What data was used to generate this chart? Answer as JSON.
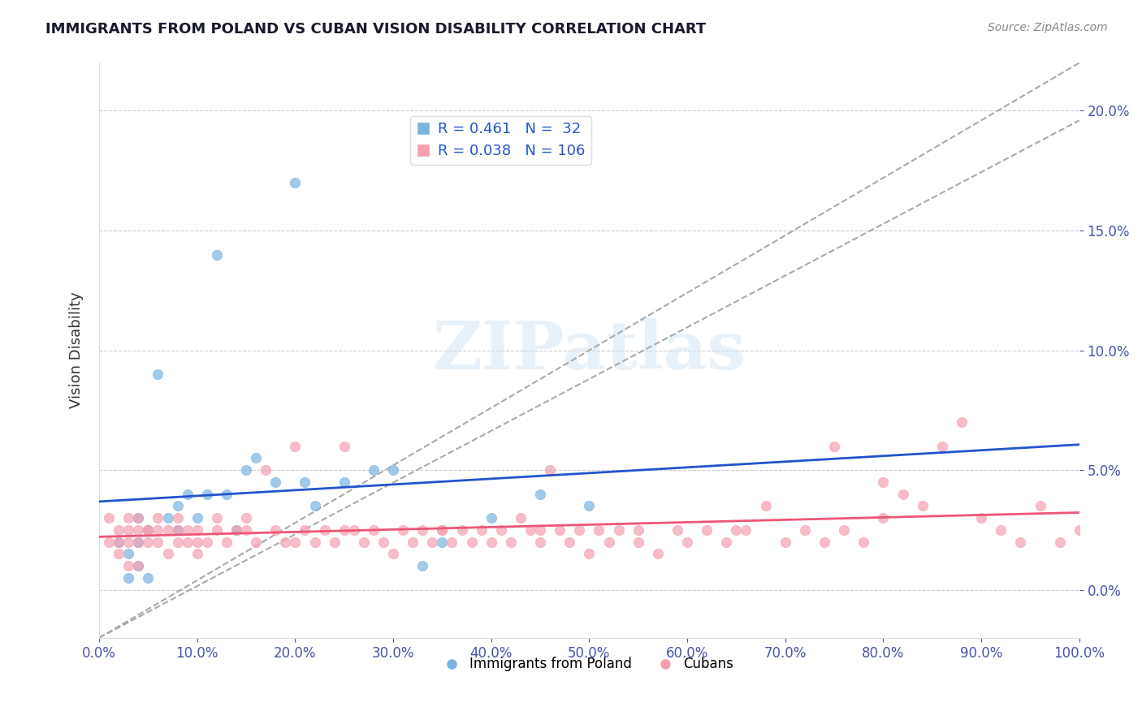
{
  "title": "IMMIGRANTS FROM POLAND VS CUBAN VISION DISABILITY CORRELATION CHART",
  "source": "Source: ZipAtlas.com",
  "xlabel_bottom": "",
  "ylabel": "Vision Disability",
  "legend_bottom": [
    "Immigrants from Poland",
    "Cubans"
  ],
  "blue_R": 0.461,
  "blue_N": 32,
  "pink_R": 0.038,
  "pink_N": 106,
  "xlim": [
    0.0,
    1.0
  ],
  "ylim": [
    -0.02,
    0.22
  ],
  "yticks": [
    0.0,
    0.05,
    0.1,
    0.15,
    0.2
  ],
  "xticks": [
    0.0,
    0.1,
    0.2,
    0.3,
    0.4,
    0.5,
    0.6,
    0.7,
    0.8,
    0.9,
    1.0
  ],
  "title_color": "#1a1a2e",
  "axis_label_color": "#4455aa",
  "tick_color": "#4455aa",
  "blue_color": "#7ab3e0",
  "pink_color": "#f4a0b0",
  "blue_line_color": "#2255cc",
  "pink_line_color": "#ee5577",
  "diag_line_color": "#aaaaaa",
  "watermark": "ZIPatlas",
  "background_color": "#ffffff",
  "blue_points_x": [
    0.02,
    0.03,
    0.03,
    0.04,
    0.04,
    0.04,
    0.05,
    0.05,
    0.06,
    0.07,
    0.08,
    0.08,
    0.09,
    0.1,
    0.11,
    0.12,
    0.13,
    0.14,
    0.15,
    0.16,
    0.18,
    0.2,
    0.21,
    0.22,
    0.25,
    0.28,
    0.3,
    0.33,
    0.35,
    0.4,
    0.45,
    0.5
  ],
  "blue_points_y": [
    0.02,
    0.005,
    0.015,
    0.01,
    0.02,
    0.03,
    0.025,
    0.005,
    0.09,
    0.03,
    0.035,
    0.025,
    0.04,
    0.03,
    0.04,
    0.14,
    0.04,
    0.025,
    0.05,
    0.055,
    0.045,
    0.17,
    0.045,
    0.035,
    0.045,
    0.05,
    0.05,
    0.01,
    0.02,
    0.03,
    0.04,
    0.035
  ],
  "pink_points_x": [
    0.01,
    0.01,
    0.02,
    0.02,
    0.02,
    0.03,
    0.03,
    0.03,
    0.04,
    0.04,
    0.04,
    0.05,
    0.05,
    0.06,
    0.06,
    0.07,
    0.07,
    0.08,
    0.08,
    0.09,
    0.09,
    0.1,
    0.1,
    0.11,
    0.12,
    0.12,
    0.13,
    0.14,
    0.15,
    0.16,
    0.17,
    0.18,
    0.19,
    0.2,
    0.21,
    0.22,
    0.23,
    0.24,
    0.25,
    0.26,
    0.27,
    0.28,
    0.29,
    0.3,
    0.31,
    0.32,
    0.33,
    0.34,
    0.35,
    0.36,
    0.37,
    0.38,
    0.39,
    0.4,
    0.41,
    0.42,
    0.43,
    0.44,
    0.45,
    0.46,
    0.47,
    0.48,
    0.49,
    0.5,
    0.51,
    0.52,
    0.53,
    0.55,
    0.57,
    0.59,
    0.6,
    0.62,
    0.64,
    0.66,
    0.68,
    0.7,
    0.72,
    0.74,
    0.76,
    0.78,
    0.8,
    0.82,
    0.84,
    0.86,
    0.88,
    0.9,
    0.92,
    0.94,
    0.96,
    0.98,
    1.0,
    0.75,
    0.8,
    0.65,
    0.55,
    0.45,
    0.35,
    0.25,
    0.2,
    0.15,
    0.1,
    0.08,
    0.06,
    0.05,
    0.04,
    0.03
  ],
  "pink_points_y": [
    0.03,
    0.02,
    0.025,
    0.015,
    0.02,
    0.03,
    0.02,
    0.025,
    0.03,
    0.02,
    0.025,
    0.025,
    0.02,
    0.03,
    0.02,
    0.025,
    0.015,
    0.02,
    0.03,
    0.025,
    0.02,
    0.025,
    0.015,
    0.02,
    0.03,
    0.025,
    0.02,
    0.025,
    0.03,
    0.02,
    0.05,
    0.025,
    0.02,
    0.06,
    0.025,
    0.02,
    0.025,
    0.02,
    0.06,
    0.025,
    0.02,
    0.025,
    0.02,
    0.015,
    0.025,
    0.02,
    0.025,
    0.02,
    0.025,
    0.02,
    0.025,
    0.02,
    0.025,
    0.02,
    0.025,
    0.02,
    0.03,
    0.025,
    0.02,
    0.05,
    0.025,
    0.02,
    0.025,
    0.015,
    0.025,
    0.02,
    0.025,
    0.02,
    0.015,
    0.025,
    0.02,
    0.025,
    0.02,
    0.025,
    0.035,
    0.02,
    0.025,
    0.02,
    0.025,
    0.02,
    0.03,
    0.04,
    0.035,
    0.06,
    0.07,
    0.03,
    0.025,
    0.02,
    0.035,
    0.02,
    0.025,
    0.06,
    0.045,
    0.025,
    0.025,
    0.025,
    0.025,
    0.025,
    0.02,
    0.025,
    0.02,
    0.025,
    0.025,
    0.025,
    0.01,
    0.01
  ]
}
